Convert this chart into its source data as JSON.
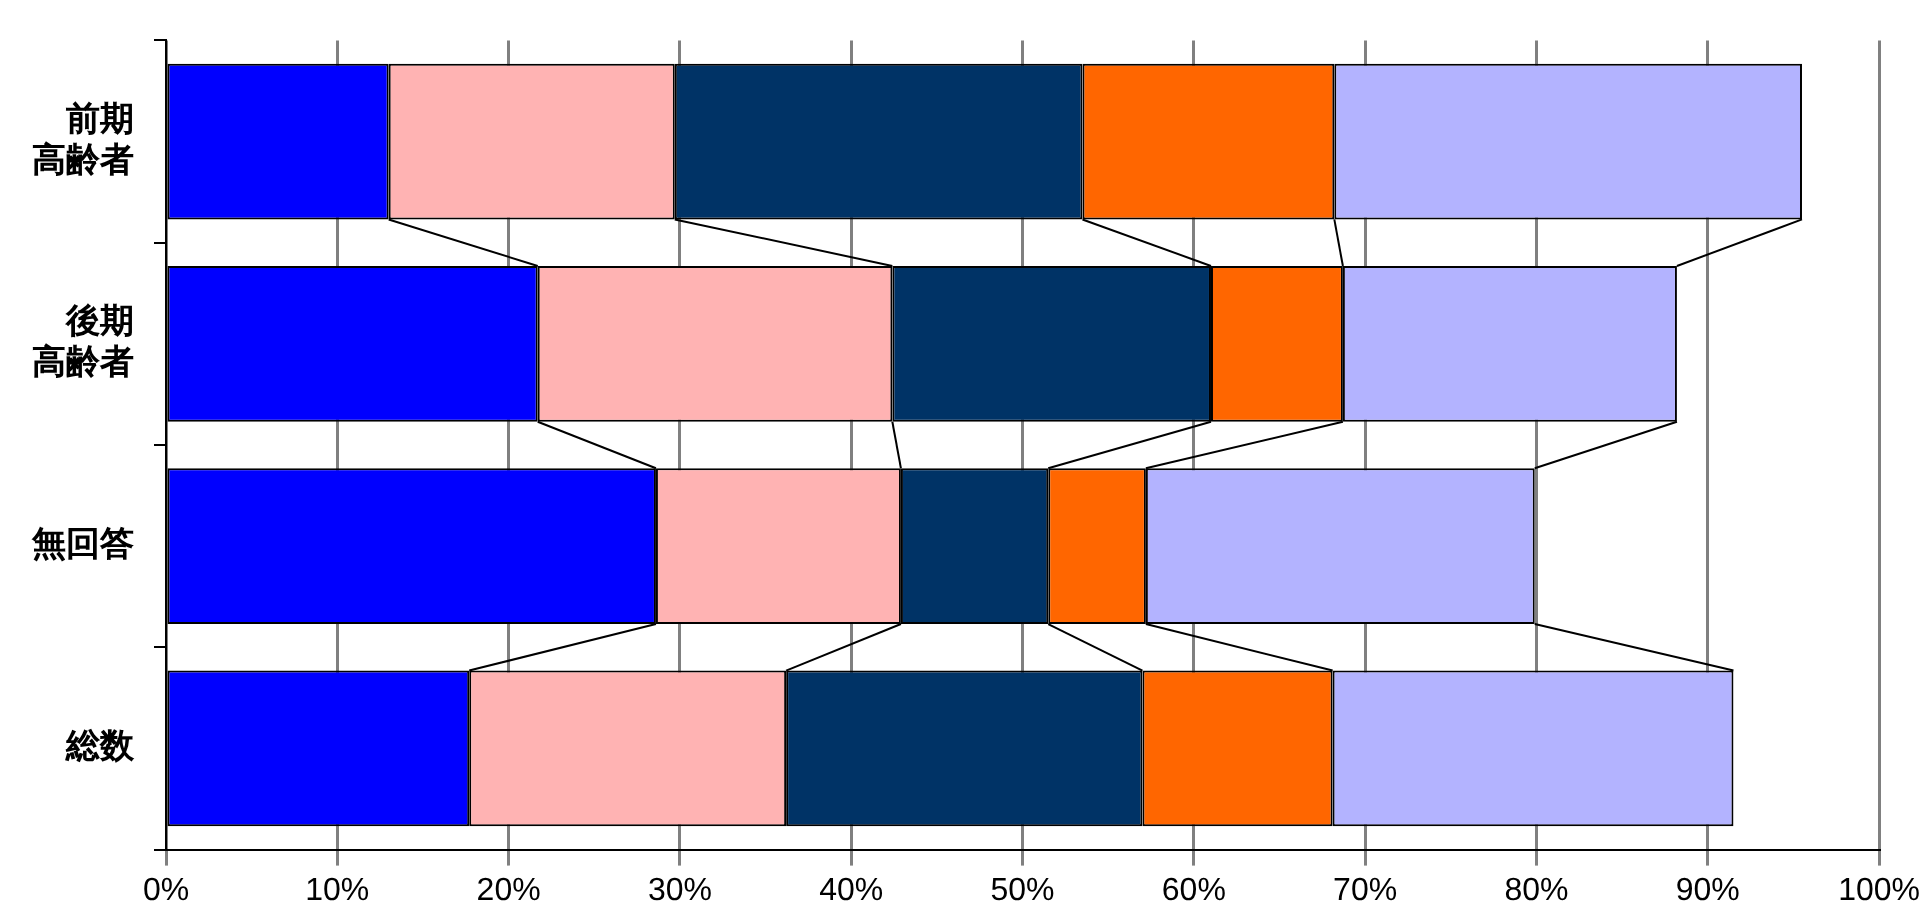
{
  "chart_data": {
    "type": "bar",
    "orientation": "horizontal",
    "stacked": true,
    "categories": [
      "前期高齢者",
      "後期高齢者",
      "無回答",
      "総数"
    ],
    "series": [
      {
        "color": "#0000ff",
        "values": [
          13.0,
          21.7,
          28.6,
          17.7
        ]
      },
      {
        "color": "#ffb3b3",
        "values": [
          16.7,
          20.7,
          14.3,
          18.5
        ]
      },
      {
        "color": "#003366",
        "values": [
          23.8,
          18.6,
          8.6,
          20.8
        ]
      },
      {
        "color": "#ff6600",
        "values": [
          14.7,
          7.7,
          5.7,
          11.1
        ]
      },
      {
        "color": "#b3b3ff",
        "values": [
          27.3,
          19.5,
          22.7,
          23.4
        ]
      }
    ],
    "xlim": [
      0,
      100
    ],
    "xticks": [
      {
        "value": 0,
        "label": "0%"
      },
      {
        "value": 10,
        "label": "10%"
      },
      {
        "value": 20,
        "label": "20%"
      },
      {
        "value": 30,
        "label": "30%"
      },
      {
        "value": 40,
        "label": "40%"
      },
      {
        "value": 50,
        "label": "50%"
      },
      {
        "value": 60,
        "label": "60%"
      },
      {
        "value": 70,
        "label": "70%"
      },
      {
        "value": 80,
        "label": "80%"
      },
      {
        "value": 90,
        "label": "90%"
      },
      {
        "value": 100,
        "label": "100%"
      }
    ],
    "grid": "x",
    "legend": false
  }
}
